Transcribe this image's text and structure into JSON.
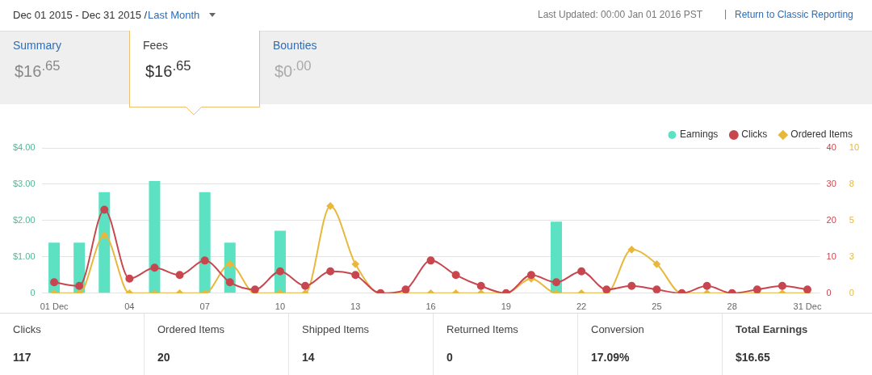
{
  "chart_data": {
    "type": "bar",
    "categories": [
      "01 Dec",
      null,
      null,
      "04",
      null,
      null,
      "07",
      null,
      null,
      "10",
      null,
      null,
      "13",
      null,
      null,
      "16",
      null,
      null,
      "19",
      null,
      null,
      "22",
      null,
      null,
      "25",
      null,
      null,
      "28",
      null,
      null,
      "31 Dec"
    ],
    "series": [
      {
        "name": "Earnings",
        "axis": "y",
        "color": "#5ce1c3",
        "values": [
          1.39,
          1.39,
          2.78,
          0,
          3.09,
          0,
          2.78,
          1.39,
          0,
          1.72,
          0,
          0,
          0,
          0,
          0,
          0,
          0,
          0,
          0,
          0,
          1.97,
          0,
          0,
          0,
          0,
          0,
          0,
          0,
          0,
          0,
          0
        ]
      },
      {
        "name": "Clicks",
        "type": "line",
        "axis": "y2",
        "color": "#c8474f",
        "marker": "circle",
        "values": [
          3,
          2,
          23,
          4,
          7,
          5,
          9,
          3,
          1,
          6,
          2,
          6,
          5,
          0,
          1,
          9,
          5,
          2,
          0,
          5,
          3,
          6,
          1,
          2,
          1,
          0,
          2,
          0,
          1,
          2,
          1
        ]
      },
      {
        "name": "Ordered Items",
        "type": "line",
        "axis": "y3",
        "color": "#e8b83c",
        "marker": "diamond",
        "values": [
          0,
          0,
          4,
          0,
          0,
          0,
          0,
          2,
          0,
          0,
          0,
          6,
          2,
          0,
          0,
          0,
          0,
          0,
          0,
          1,
          0,
          0,
          0,
          3,
          2,
          0,
          0,
          0,
          0,
          0,
          0
        ]
      }
    ],
    "ylim": [
      0,
      4
    ],
    "yticks": [
      0,
      {
        "value": 1,
        "label": "$1.00"
      },
      {
        "value": 2,
        "label": "$2.00"
      },
      {
        "value": 3,
        "label": "$3.00"
      },
      {
        "value": 4,
        "label": "$4.00"
      }
    ],
    "y2lim": [
      0,
      40
    ],
    "y2ticks": [
      0,
      10,
      20,
      30,
      40
    ],
    "y3lim": [
      0,
      10
    ],
    "y3ticks": [
      0,
      {
        "value": 2.5,
        "label": "3"
      },
      5,
      {
        "value": 7.5,
        "label": "8"
      },
      10
    ],
    "grid": "y",
    "legend": "top right",
    "annotations": [
      "Dec 01 2015 - Dec 31 2015 /",
      "Last Month",
      "Last Updated: 00:00 Jan 01 2016 PST",
      "|",
      "Return to Classic Reporting",
      "Summary",
      "$16$^{.65}$",
      "Fees",
      "$16$^{.65}$",
      "Bounties",
      "$0$^{.00}$",
      "Clicks",
      "117",
      "Ordered Items",
      "20",
      "Shipped Items",
      "14",
      "Returned Items",
      "0",
      "Conversion",
      "17.09%",
      "Total Earnings",
      "$16.65"
    ]
  }
}
